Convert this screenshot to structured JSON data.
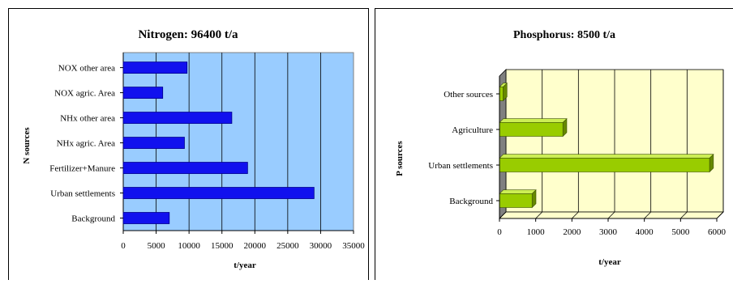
{
  "chart_data": [
    {
      "type": "bar",
      "orientation": "horizontal",
      "title": "Nitrogen: 96400 t/a",
      "xlabel": "t/year",
      "ylabel": "N sources",
      "categories": [
        "NOX other area",
        "NOX agric. Area",
        "NHx other area",
        "NHx agric. Area",
        "Fertilizer+Manure",
        "Urban settlements",
        "Background"
      ],
      "values": [
        9700,
        6000,
        16500,
        9300,
        18900,
        29000,
        7000
      ],
      "xlim": [
        0,
        35000
      ],
      "ticks": [
        "0",
        "5000",
        "10000",
        "15000",
        "20000",
        "25000",
        "30000",
        "35000"
      ],
      "grid": true,
      "bar_color": "#1111ee",
      "plot_bg": "#99ccff"
    },
    {
      "type": "bar",
      "orientation": "horizontal",
      "style": "3d",
      "title": "Phosphorus: 8500 t/a",
      "xlabel": "t/year",
      "ylabel": "P sources",
      "categories": [
        "Other sources",
        "Agriculture",
        "Urban settlements",
        "Background"
      ],
      "values": [
        100,
        1750,
        5800,
        900
      ],
      "xlim": [
        0,
        6000
      ],
      "ticks": [
        "0",
        "1000",
        "2000",
        "3000",
        "4000",
        "5000",
        "6000"
      ],
      "grid": true,
      "bar_color": "#99cc00",
      "plot_bg": "#ffffcc"
    }
  ]
}
